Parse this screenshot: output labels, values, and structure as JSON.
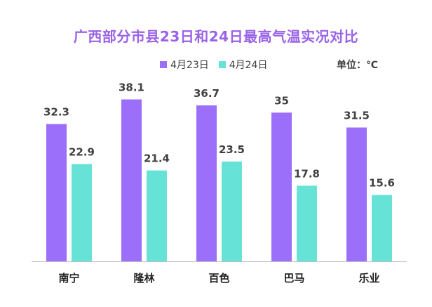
{
  "colors": {
    "title": "#9a62e8",
    "series_4_23": "#9b6ffa",
    "series_4_24": "#66e3d6",
    "axis": "#bfbfbf"
  },
  "unit": "单位：℃",
  "chart_data": {
    "type": "bar",
    "title": "广西部分市县23日和24日最高气温实况对比",
    "xlabel": "",
    "ylabel": "",
    "categories": [
      "南宁",
      "隆林",
      "百色",
      "巴马",
      "乐业"
    ],
    "series": [
      {
        "name": "4月23日",
        "values": [
          32.3,
          38.1,
          36.7,
          35,
          31.5
        ]
      },
      {
        "name": "4月24日",
        "values": [
          22.9,
          21.4,
          23.5,
          17.8,
          15.6
        ]
      }
    ],
    "value_labels": [
      [
        "32.3",
        "38.1",
        "36.7",
        "35",
        "31.5"
      ],
      [
        "22.9",
        "21.4",
        "23.5",
        "17.8",
        "15.6"
      ]
    ],
    "ylim": [
      0,
      41
    ],
    "grid": false,
    "legend_position": "top"
  }
}
